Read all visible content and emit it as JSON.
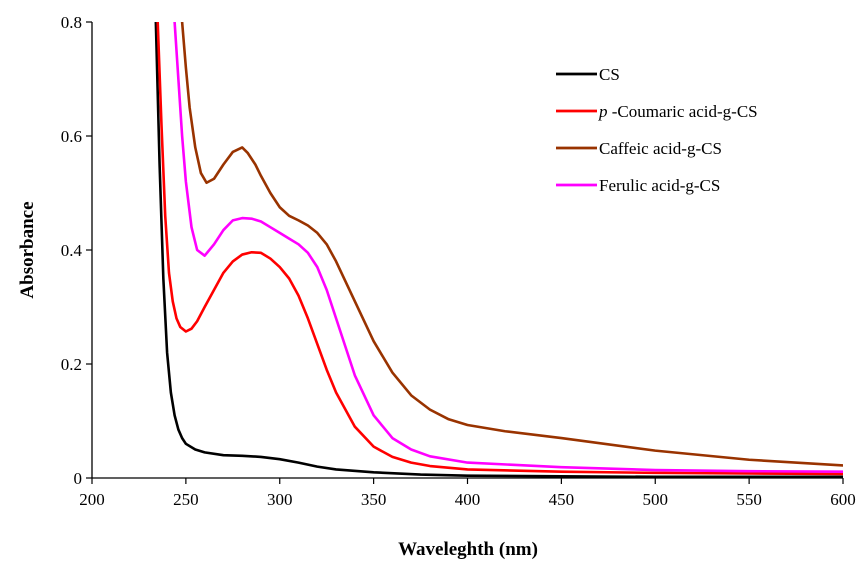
{
  "chart_data": {
    "type": "line",
    "title": "",
    "xlabel": "Waveleghth (nm)",
    "ylabel": "Absorbance",
    "xlim": [
      200,
      600
    ],
    "ylim": [
      0,
      0.8
    ],
    "xticks": [
      "200",
      "250",
      "300",
      "350",
      "400",
      "450",
      "500",
      "550",
      "600"
    ],
    "yticks": [
      "0",
      "0.2",
      "0.4",
      "0.6",
      "0.8"
    ],
    "grid": false,
    "legend_position": "top-right",
    "series": [
      {
        "name": "CS",
        "legend_italic_prefix": "",
        "legend_text": "CS",
        "color": "#000000",
        "x": [
          234,
          236,
          238,
          240,
          242,
          244,
          246,
          248,
          250,
          255,
          260,
          270,
          280,
          290,
          300,
          310,
          320,
          330,
          350,
          375,
          400,
          450,
          500,
          550,
          600
        ],
        "y": [
          0.8,
          0.55,
          0.35,
          0.22,
          0.15,
          0.11,
          0.085,
          0.07,
          0.06,
          0.05,
          0.045,
          0.04,
          0.039,
          0.037,
          0.033,
          0.027,
          0.02,
          0.015,
          0.01,
          0.006,
          0.004,
          0.003,
          0.002,
          0.002,
          0.002
        ]
      },
      {
        "name": "p -Coumaric acid-g-CS",
        "legend_italic_prefix": "p",
        "legend_text": " -Coumaric acid-g-CS",
        "color": "#ff0000",
        "x": [
          235,
          237,
          239,
          241,
          243,
          245,
          247,
          250,
          253,
          256,
          260,
          265,
          270,
          275,
          280,
          285,
          290,
          295,
          300,
          305,
          310,
          315,
          320,
          325,
          330,
          340,
          350,
          360,
          370,
          380,
          400,
          450,
          500,
          550,
          600
        ],
        "y": [
          0.8,
          0.62,
          0.46,
          0.36,
          0.31,
          0.28,
          0.265,
          0.257,
          0.262,
          0.275,
          0.3,
          0.33,
          0.36,
          0.38,
          0.392,
          0.396,
          0.395,
          0.385,
          0.37,
          0.35,
          0.32,
          0.28,
          0.235,
          0.19,
          0.15,
          0.09,
          0.055,
          0.037,
          0.027,
          0.021,
          0.015,
          0.011,
          0.009,
          0.008,
          0.007
        ]
      },
      {
        "name": "Caffeic acid-g-CS",
        "legend_italic_prefix": "",
        "legend_text": "Caffeic acid-g-CS",
        "color": "#993300",
        "x": [
          248,
          250,
          252,
          255,
          258,
          261,
          265,
          270,
          275,
          280,
          283,
          287,
          290,
          295,
          300,
          305,
          310,
          315,
          320,
          325,
          330,
          340,
          350,
          360,
          370,
          380,
          390,
          400,
          420,
          450,
          500,
          550,
          600
        ],
        "y": [
          0.8,
          0.72,
          0.65,
          0.58,
          0.535,
          0.518,
          0.525,
          0.55,
          0.572,
          0.58,
          0.57,
          0.55,
          0.53,
          0.5,
          0.475,
          0.46,
          0.452,
          0.443,
          0.43,
          0.41,
          0.38,
          0.31,
          0.24,
          0.185,
          0.145,
          0.12,
          0.103,
          0.093,
          0.082,
          0.07,
          0.048,
          0.032,
          0.022
        ]
      },
      {
        "name": "Ferulic acid-g-CS",
        "legend_italic_prefix": "",
        "legend_text": "Ferulic acid-g-CS",
        "color": "#ff00ff",
        "x": [
          244,
          246,
          248,
          250,
          253,
          256,
          260,
          265,
          270,
          275,
          280,
          285,
          290,
          295,
          300,
          305,
          310,
          315,
          320,
          325,
          330,
          340,
          350,
          360,
          370,
          380,
          400,
          450,
          500,
          550,
          600
        ],
        "y": [
          0.8,
          0.7,
          0.6,
          0.52,
          0.44,
          0.4,
          0.39,
          0.41,
          0.435,
          0.452,
          0.456,
          0.455,
          0.45,
          0.44,
          0.43,
          0.42,
          0.41,
          0.395,
          0.37,
          0.33,
          0.28,
          0.18,
          0.11,
          0.07,
          0.05,
          0.038,
          0.027,
          0.019,
          0.014,
          0.012,
          0.011
        ]
      }
    ]
  }
}
